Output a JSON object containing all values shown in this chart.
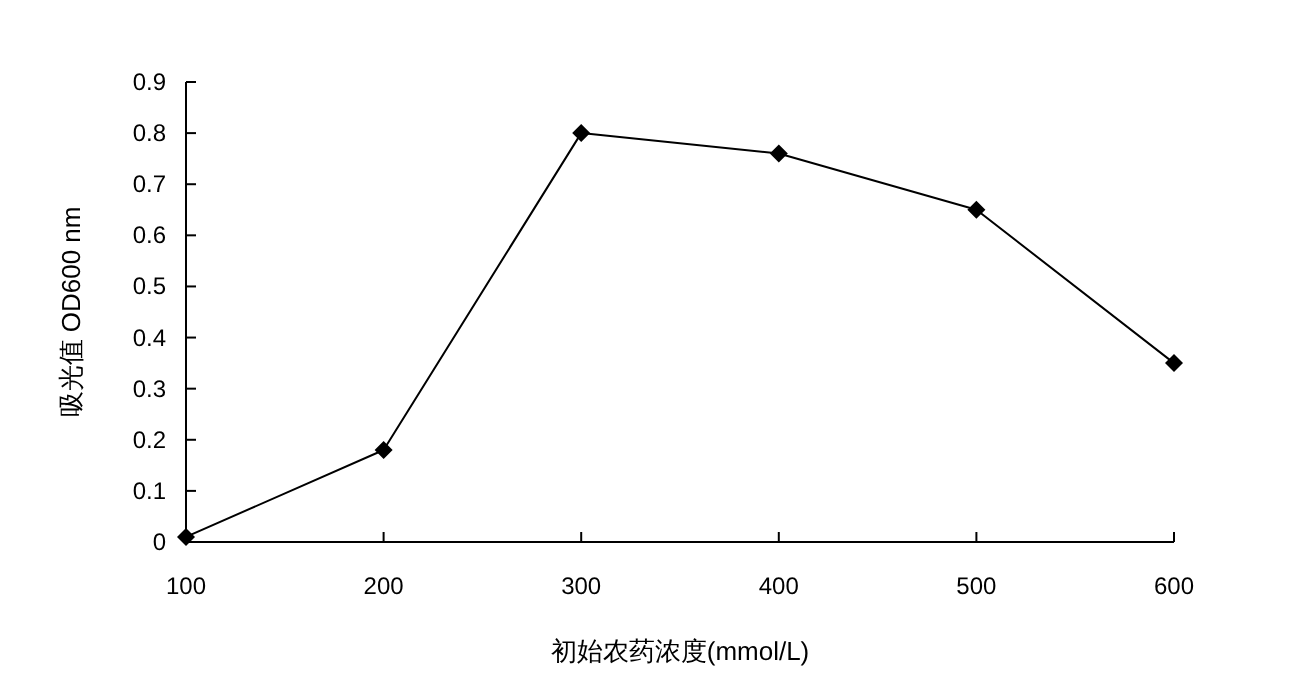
{
  "chart_data": {
    "type": "line",
    "xlabel": "初始农药浓度(mmol/L)",
    "ylabel": "吸光值 OD600 nm",
    "x": [
      100,
      200,
      300,
      400,
      500,
      600
    ],
    "series": [
      {
        "color": "#000000",
        "values": [
          0.01,
          0.18,
          0.8,
          0.76,
          0.65,
          0.35
        ]
      }
    ],
    "xlim": [
      100,
      600
    ],
    "xticks": [
      100,
      200,
      300,
      400,
      500,
      600
    ],
    "ylim": [
      0,
      0.9
    ],
    "yticks": [
      {
        "value": 0,
        "label": "0"
      },
      0.1,
      0.2,
      0.3,
      0.4,
      0.5,
      0.6,
      0.7,
      0.8,
      0.9
    ],
    "marker": "diamond",
    "line_style": "solid",
    "grid": false
  }
}
